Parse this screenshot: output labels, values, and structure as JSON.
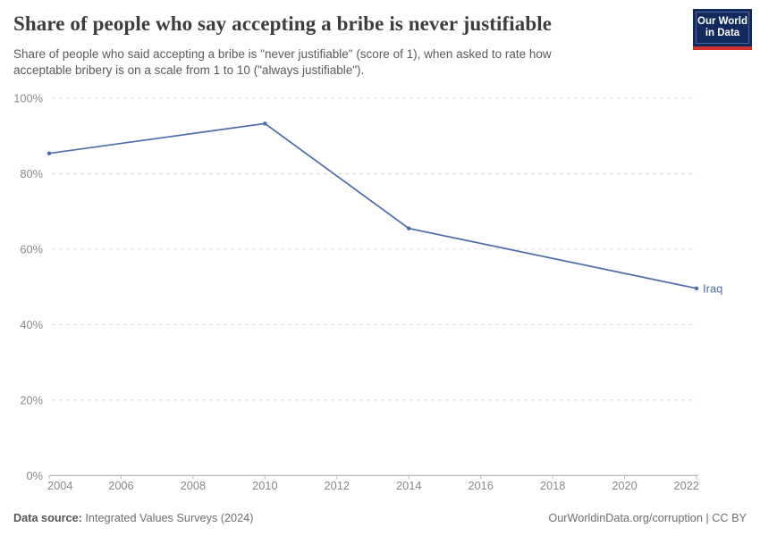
{
  "header": {
    "title": "Share of people who say accepting a bribe is never justifiable",
    "subtitle": "Share of people who said accepting a bribe is \"never justifiable\" (score of 1), when asked to rate how\nacceptable bribery is on a scale from 1 to 10 (\"always justifiable\").",
    "logo": {
      "line1": "Our World",
      "line2": "in Data"
    }
  },
  "chart_data": {
    "type": "line",
    "title": "Share of people who say accepting a bribe is never justifiable",
    "series": [
      {
        "name": "Iraq",
        "color": "#4C6BA8",
        "points": [
          {
            "x": 2004,
            "y": 85.4
          },
          {
            "x": 2010,
            "y": 93.3
          },
          {
            "x": 2014,
            "y": 65.5
          },
          {
            "x": 2022,
            "y": 49.6
          }
        ]
      }
    ],
    "xlim": [
      2004,
      2022
    ],
    "ylim": [
      0,
      100
    ],
    "x_ticks": [
      2004,
      2006,
      2008,
      2010,
      2012,
      2014,
      2016,
      2018,
      2020,
      2022
    ],
    "y_ticks": [
      0,
      20,
      40,
      60,
      80,
      100
    ],
    "y_tick_suffix": "%",
    "grid": "horizontal-dashed",
    "legend_position": "end-of-line-label",
    "xlabel": "",
    "ylabel": ""
  },
  "footer": {
    "datasource_label": "Data source:",
    "datasource_value": " Integrated Values Surveys (2024)",
    "credit": "OurWorldinData.org/corruption | CC BY"
  },
  "colors": {
    "accent_line": "#4C6BA8",
    "grid": "#dedede",
    "axis": "#a3a3a3",
    "tick": "#bababa",
    "axis_label": "#898989",
    "logo_bg": "#12295c",
    "logo_red": "#d0342c"
  }
}
